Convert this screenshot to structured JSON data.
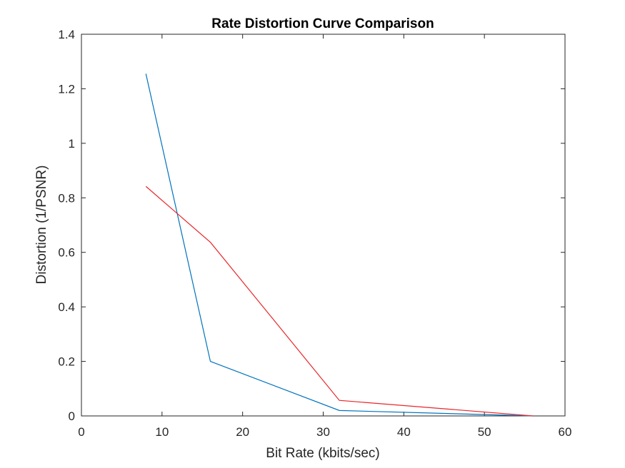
{
  "chart_data": {
    "type": "line",
    "title": "Rate Distortion Curve Comparison",
    "xlabel": "Bit Rate (kbits/sec)",
    "ylabel": "Distortion (1/PSNR)",
    "xlim": [
      0,
      60
    ],
    "ylim": [
      0,
      1.4
    ],
    "xticks": [
      0,
      10,
      20,
      30,
      40,
      50,
      60
    ],
    "yticks": [
      0,
      0.2,
      0.4,
      0.6,
      0.8,
      1,
      1.2,
      1.4
    ],
    "grid": false,
    "legend": null,
    "series": [
      {
        "color": "#0072BD",
        "x": [
          8,
          16,
          32,
          56
        ],
        "y": [
          1.255,
          0.2,
          0.02,
          0.0
        ]
      },
      {
        "color": "#E8262A",
        "x": [
          8,
          16,
          32,
          56
        ],
        "y": [
          0.842,
          0.637,
          0.057,
          0.0
        ]
      }
    ]
  }
}
